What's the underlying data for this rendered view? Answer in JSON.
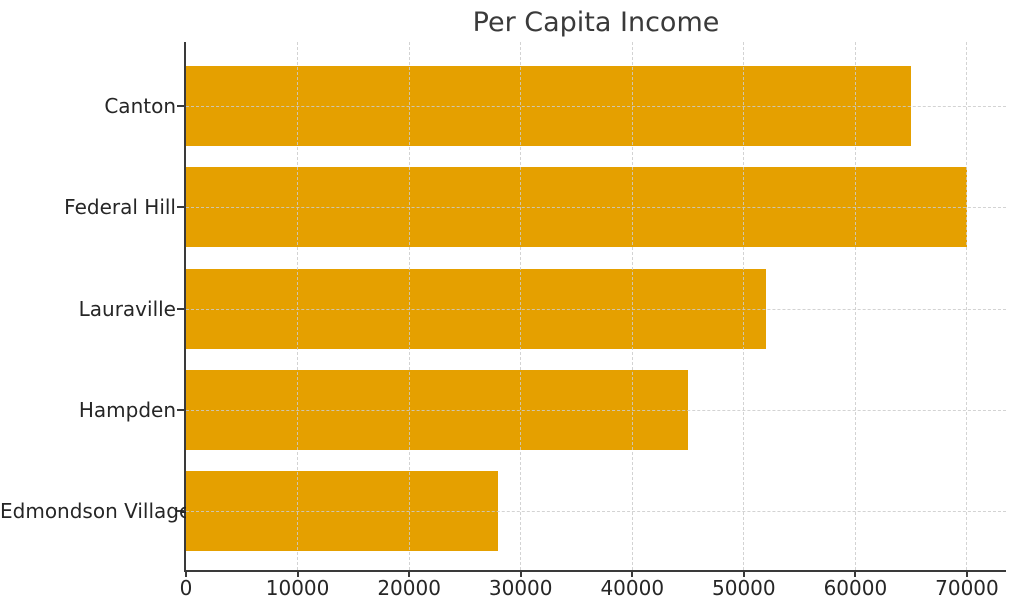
{
  "chart_data": {
    "type": "bar",
    "orientation": "horizontal",
    "title": "Per Capita Income",
    "categories": [
      "Canton",
      "Federal Hill",
      "Lauraville",
      "Hampden",
      "Edmondson Village"
    ],
    "values": [
      65000,
      70000,
      52000,
      45000,
      28000
    ],
    "xlabel": "",
    "ylabel": "",
    "xlim": [
      0,
      73500
    ],
    "xticks": [
      0,
      10000,
      20000,
      30000,
      40000,
      50000,
      60000,
      70000
    ],
    "xtick_labels": [
      "0",
      "10000",
      "20000",
      "30000",
      "40000",
      "50000",
      "60000",
      "70000"
    ],
    "grid": true,
    "grid_style": "dashed",
    "grid_above_bars": true,
    "legend": false,
    "colors": {
      "bar": "#E5A000",
      "axis": "#3A3A3A",
      "grid": "#CBCBCB",
      "tick_text": "#262626",
      "title_text": "#3A3A3A",
      "background": "#FFFFFF"
    }
  }
}
